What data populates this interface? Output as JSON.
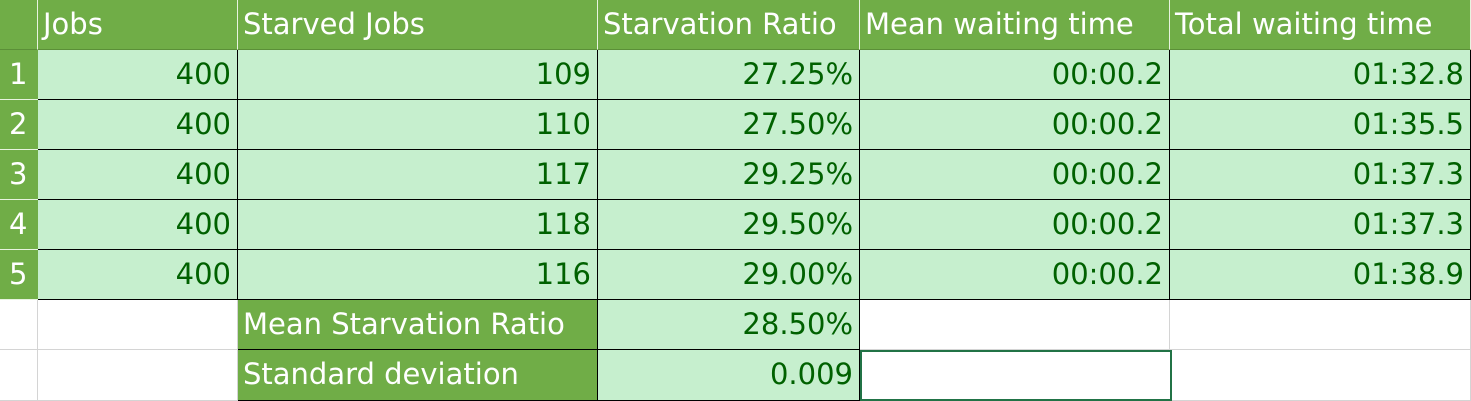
{
  "headers": [
    "Jobs",
    "Starved Jobs",
    "Starvation Ratio",
    "Mean waiting time",
    "Total waiting time"
  ],
  "rows": [
    {
      "n": "1",
      "jobs": "400",
      "starved": "109",
      "ratio": "27.25%",
      "mean": "00:00.2",
      "total": "01:32.8"
    },
    {
      "n": "2",
      "jobs": "400",
      "starved": "110",
      "ratio": "27.50%",
      "mean": "00:00.2",
      "total": "01:35.5"
    },
    {
      "n": "3",
      "jobs": "400",
      "starved": "117",
      "ratio": "29.25%",
      "mean": "00:00.2",
      "total": "01:37.3"
    },
    {
      "n": "4",
      "jobs": "400",
      "starved": "118",
      "ratio": "29.50%",
      "mean": "00:00.2",
      "total": "01:37.3"
    },
    {
      "n": "5",
      "jobs": "400",
      "starved": "116",
      "ratio": "29.00%",
      "mean": "00:00.2",
      "total": "01:38.9"
    }
  ],
  "summary": {
    "mean_label": "Mean Starvation Ratio",
    "mean_value": "28.50%",
    "std_label": "Standard deviation",
    "std_value": "0.009"
  },
  "colors": {
    "header_bg": "#70ad47",
    "cell_bg": "#c6efce",
    "cell_text": "#006100"
  }
}
